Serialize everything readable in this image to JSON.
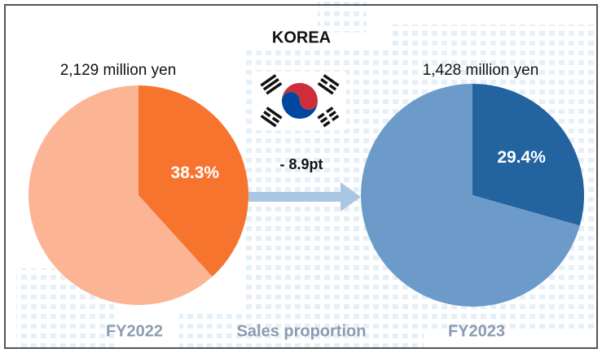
{
  "title": "KOREA",
  "change": "- 8.9pt",
  "caption": "Sales proportion",
  "chart_data": [
    {
      "type": "pie",
      "title": "FY2022",
      "subtitle": "2,129 million yen",
      "values": [
        38.3,
        61.7
      ],
      "value_labels": [
        "38.3%",
        null
      ],
      "colors": [
        "#f7742f",
        "#fbb595"
      ]
    },
    {
      "type": "pie",
      "title": "FY2023",
      "subtitle": "1,428 million yen",
      "values": [
        29.4,
        70.6
      ],
      "value_labels": [
        "29.4%",
        null
      ],
      "colors": [
        "#2263a0",
        "#6d9bc9"
      ]
    }
  ]
}
